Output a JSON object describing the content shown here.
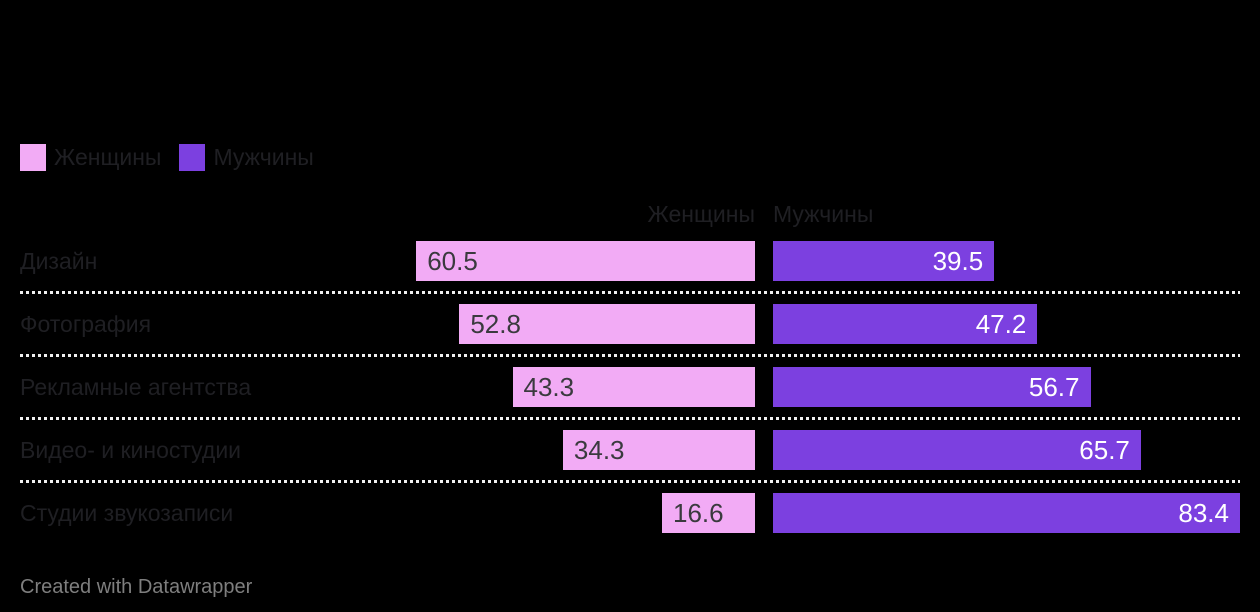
{
  "legend": {
    "items": [
      {
        "label": "Женщины",
        "color": "#f2abf5"
      },
      {
        "label": "Мужчины",
        "color": "#7c40e0"
      }
    ]
  },
  "table_header": {
    "women": "Женщины",
    "men": "Мужчины"
  },
  "footer": {
    "credit": "Created with Datawrapper"
  },
  "colors": {
    "background": "#000000",
    "women_bar": "#f2abf5",
    "men_bar": "#7c40e0",
    "label_text": "#1f1f23",
    "value_on_women": "#3a3a3e",
    "value_on_men": "#ffffff",
    "separator": "#f0f0f0",
    "footer_text": "#7e7e7e"
  },
  "chart_data": {
    "type": "bar",
    "variant": "split-bars",
    "orientation": "horizontal",
    "categories": [
      "Дизайн",
      "Фотография",
      "Рекламные агентства",
      "Видео- и киностудии",
      "Студии звукозаписи"
    ],
    "series": [
      {
        "name": "Женщины",
        "color": "#f2abf5",
        "align": "right",
        "values": [
          60.5,
          52.8,
          43.3,
          34.3,
          16.6
        ]
      },
      {
        "name": "Мужчины",
        "color": "#7c40e0",
        "align": "left",
        "values": [
          39.5,
          47.2,
          56.7,
          65.7,
          83.4
        ]
      }
    ],
    "value_labels_decimals": 1,
    "xmax": 83.4,
    "legend_position": "top-left",
    "gridlines": false,
    "row_separators": "dotted",
    "footer": "Created with Datawrapper"
  }
}
